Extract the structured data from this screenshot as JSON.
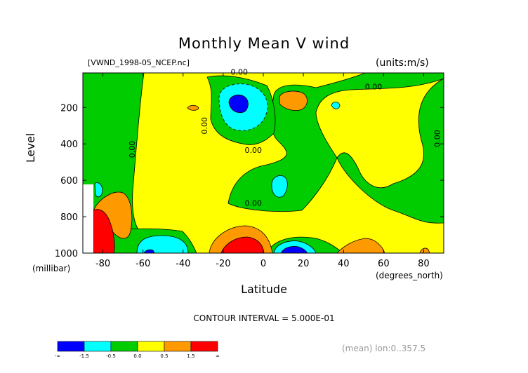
{
  "chart_data": {
    "type": "heatmap",
    "title": "Monthly Mean V wind",
    "subtitle": "[VWND_1998-05_NCEP.nc]",
    "units": "(units:m/s)",
    "xlabel": "Latitude",
    "xlabel_unit": "(degrees_north)",
    "ylabel": "Level",
    "ylabel_unit": "(millibar)",
    "xlim": [
      -90,
      90
    ],
    "ylim": [
      1000,
      10
    ],
    "x_ticks": [
      -80,
      -60,
      -40,
      -20,
      0,
      20,
      40,
      60,
      80
    ],
    "x_tick_labels": [
      "-80",
      "-60",
      "-40",
      "-20",
      "0",
      "20",
      "40",
      "60",
      "80"
    ],
    "y_ticks": [
      200,
      400,
      600,
      800,
      1000
    ],
    "y_tick_labels": [
      "200",
      "400",
      "600",
      "800",
      "1000"
    ],
    "contour_interval_text": "CONTOUR INTERVAL = 5.000E-01",
    "contour_labels": [
      {
        "x": -12,
        "y": 20,
        "text": "0.00"
      },
      {
        "x": 55,
        "y": 100,
        "text": "0.00"
      },
      {
        "x": -28,
        "y": 300,
        "text": "0.00"
      },
      {
        "x": -64,
        "y": 430,
        "text": "0.00"
      },
      {
        "x": 88,
        "y": 370,
        "text": "0.00"
      },
      {
        "x": -5,
        "y": 450,
        "text": "0.00"
      },
      {
        "x": -5,
        "y": 740,
        "text": "0.00"
      }
    ],
    "colorbar": {
      "bins": [
        {
          "color": "#0000ff",
          "label": "-1.5 and below"
        },
        {
          "color": "#00ffff",
          "label": "-1.5 to -0.5"
        },
        {
          "color": "#00cc00",
          "label": "-0.5 to 0.0"
        },
        {
          "color": "#ffff00",
          "label": "0.0 to 0.5"
        },
        {
          "color": "#ff9900",
          "label": "0.5 to 1.5"
        },
        {
          "color": "#ff0000",
          "label": "1.5 and above"
        }
      ],
      "tick_labels": [
        "-∞",
        "-1.5",
        "-0.5",
        "0.0",
        "0.5",
        "1.5",
        "∞"
      ]
    },
    "regions": [
      {
        "level": "negative_strong",
        "color": "#0000ff",
        "center": [
          -12,
          150
        ]
      },
      {
        "level": "negative",
        "color": "#00ffff",
        "center": [
          -12,
          180
        ]
      },
      {
        "level": "negative",
        "color": "#00ffff",
        "center": [
          10,
          620
        ]
      },
      {
        "level": "negative",
        "color": "#00ffff",
        "center": [
          -50,
          940
        ]
      },
      {
        "level": "negative",
        "color": "#00ffff",
        "center": [
          20,
          960
        ]
      },
      {
        "level": "negative_strong",
        "color": "#0000ff",
        "center": [
          22,
          980
        ]
      },
      {
        "level": "positive",
        "color": "#ff9900",
        "center": [
          25,
          140
        ]
      },
      {
        "level": "positive",
        "color": "#ff9900",
        "center": [
          -72,
          830
        ]
      },
      {
        "level": "positive",
        "color": "#ff9900",
        "center": [
          -15,
          930
        ]
      },
      {
        "level": "positive",
        "color": "#ff9900",
        "center": [
          55,
          960
        ]
      },
      {
        "level": "positive_strong",
        "color": "#ff0000",
        "center": [
          -85,
          950
        ]
      },
      {
        "level": "positive_strong",
        "color": "#ff0000",
        "center": [
          -13,
          970
        ]
      }
    ]
  },
  "footer": "(mean) lon:0..357.5"
}
